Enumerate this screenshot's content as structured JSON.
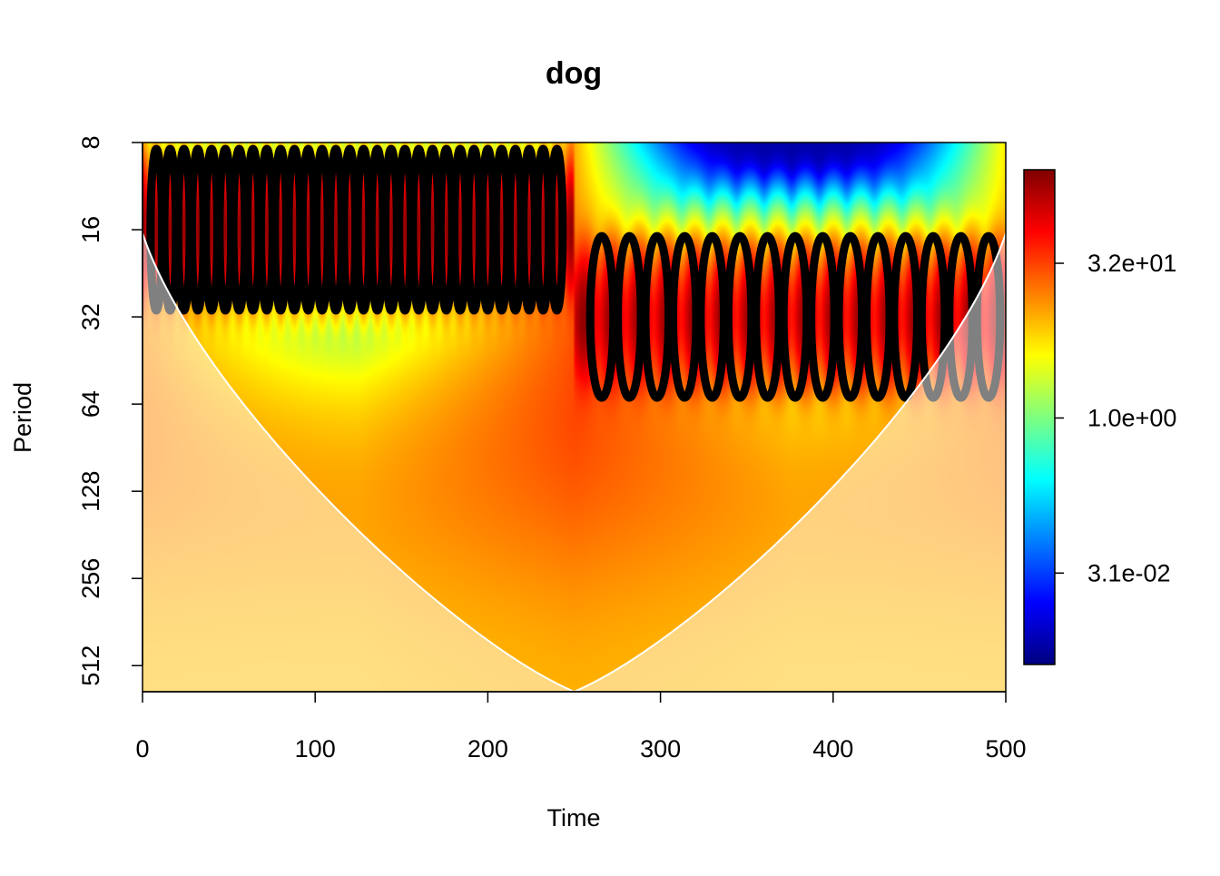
{
  "chart_data": {
    "type": "heatmap",
    "title": "dog",
    "xlabel": "Time",
    "ylabel": "Period",
    "xlim": [
      0,
      500
    ],
    "ylim": [
      8,
      630
    ],
    "y_scale": "log2",
    "y_reversed": true,
    "x_ticks": [
      {
        "value": 0,
        "label": "0"
      },
      {
        "value": 100,
        "label": "100"
      },
      {
        "value": 200,
        "label": "200"
      },
      {
        "value": 300,
        "label": "300"
      },
      {
        "value": 400,
        "label": "400"
      },
      {
        "value": 500,
        "label": "500"
      }
    ],
    "y_ticks": [
      {
        "value": 8,
        "label": "8"
      },
      {
        "value": 16,
        "label": "16"
      },
      {
        "value": 32,
        "label": "32"
      },
      {
        "value": 64,
        "label": "64"
      },
      {
        "value": 128,
        "label": "128"
      },
      {
        "value": 256,
        "label": "256"
      },
      {
        "value": 512,
        "label": "512"
      }
    ],
    "colorbar": {
      "scale": "log",
      "range": [
        0.004,
        260
      ],
      "ticks": [
        {
          "value": 0.031,
          "label": "3.1e-02"
        },
        {
          "value": 1.0,
          "label": "1.0e+00"
        },
        {
          "value": 32,
          "label": "3.2e+01"
        }
      ],
      "palette": [
        "#00007f",
        "#0000ff",
        "#007fff",
        "#00ffff",
        "#7fff7f",
        "#ffff00",
        "#ff7f00",
        "#ff0000",
        "#7f0000"
      ]
    },
    "signal_segments": [
      {
        "x_start": 0,
        "x_end": 250,
        "period": 16
      },
      {
        "x_start": 250,
        "x_end": 500,
        "period": 32
      }
    ],
    "significance_contour_color": "#000000",
    "cone_of_influence": {
      "apex_time": 250,
      "apex_period": 630
    }
  }
}
